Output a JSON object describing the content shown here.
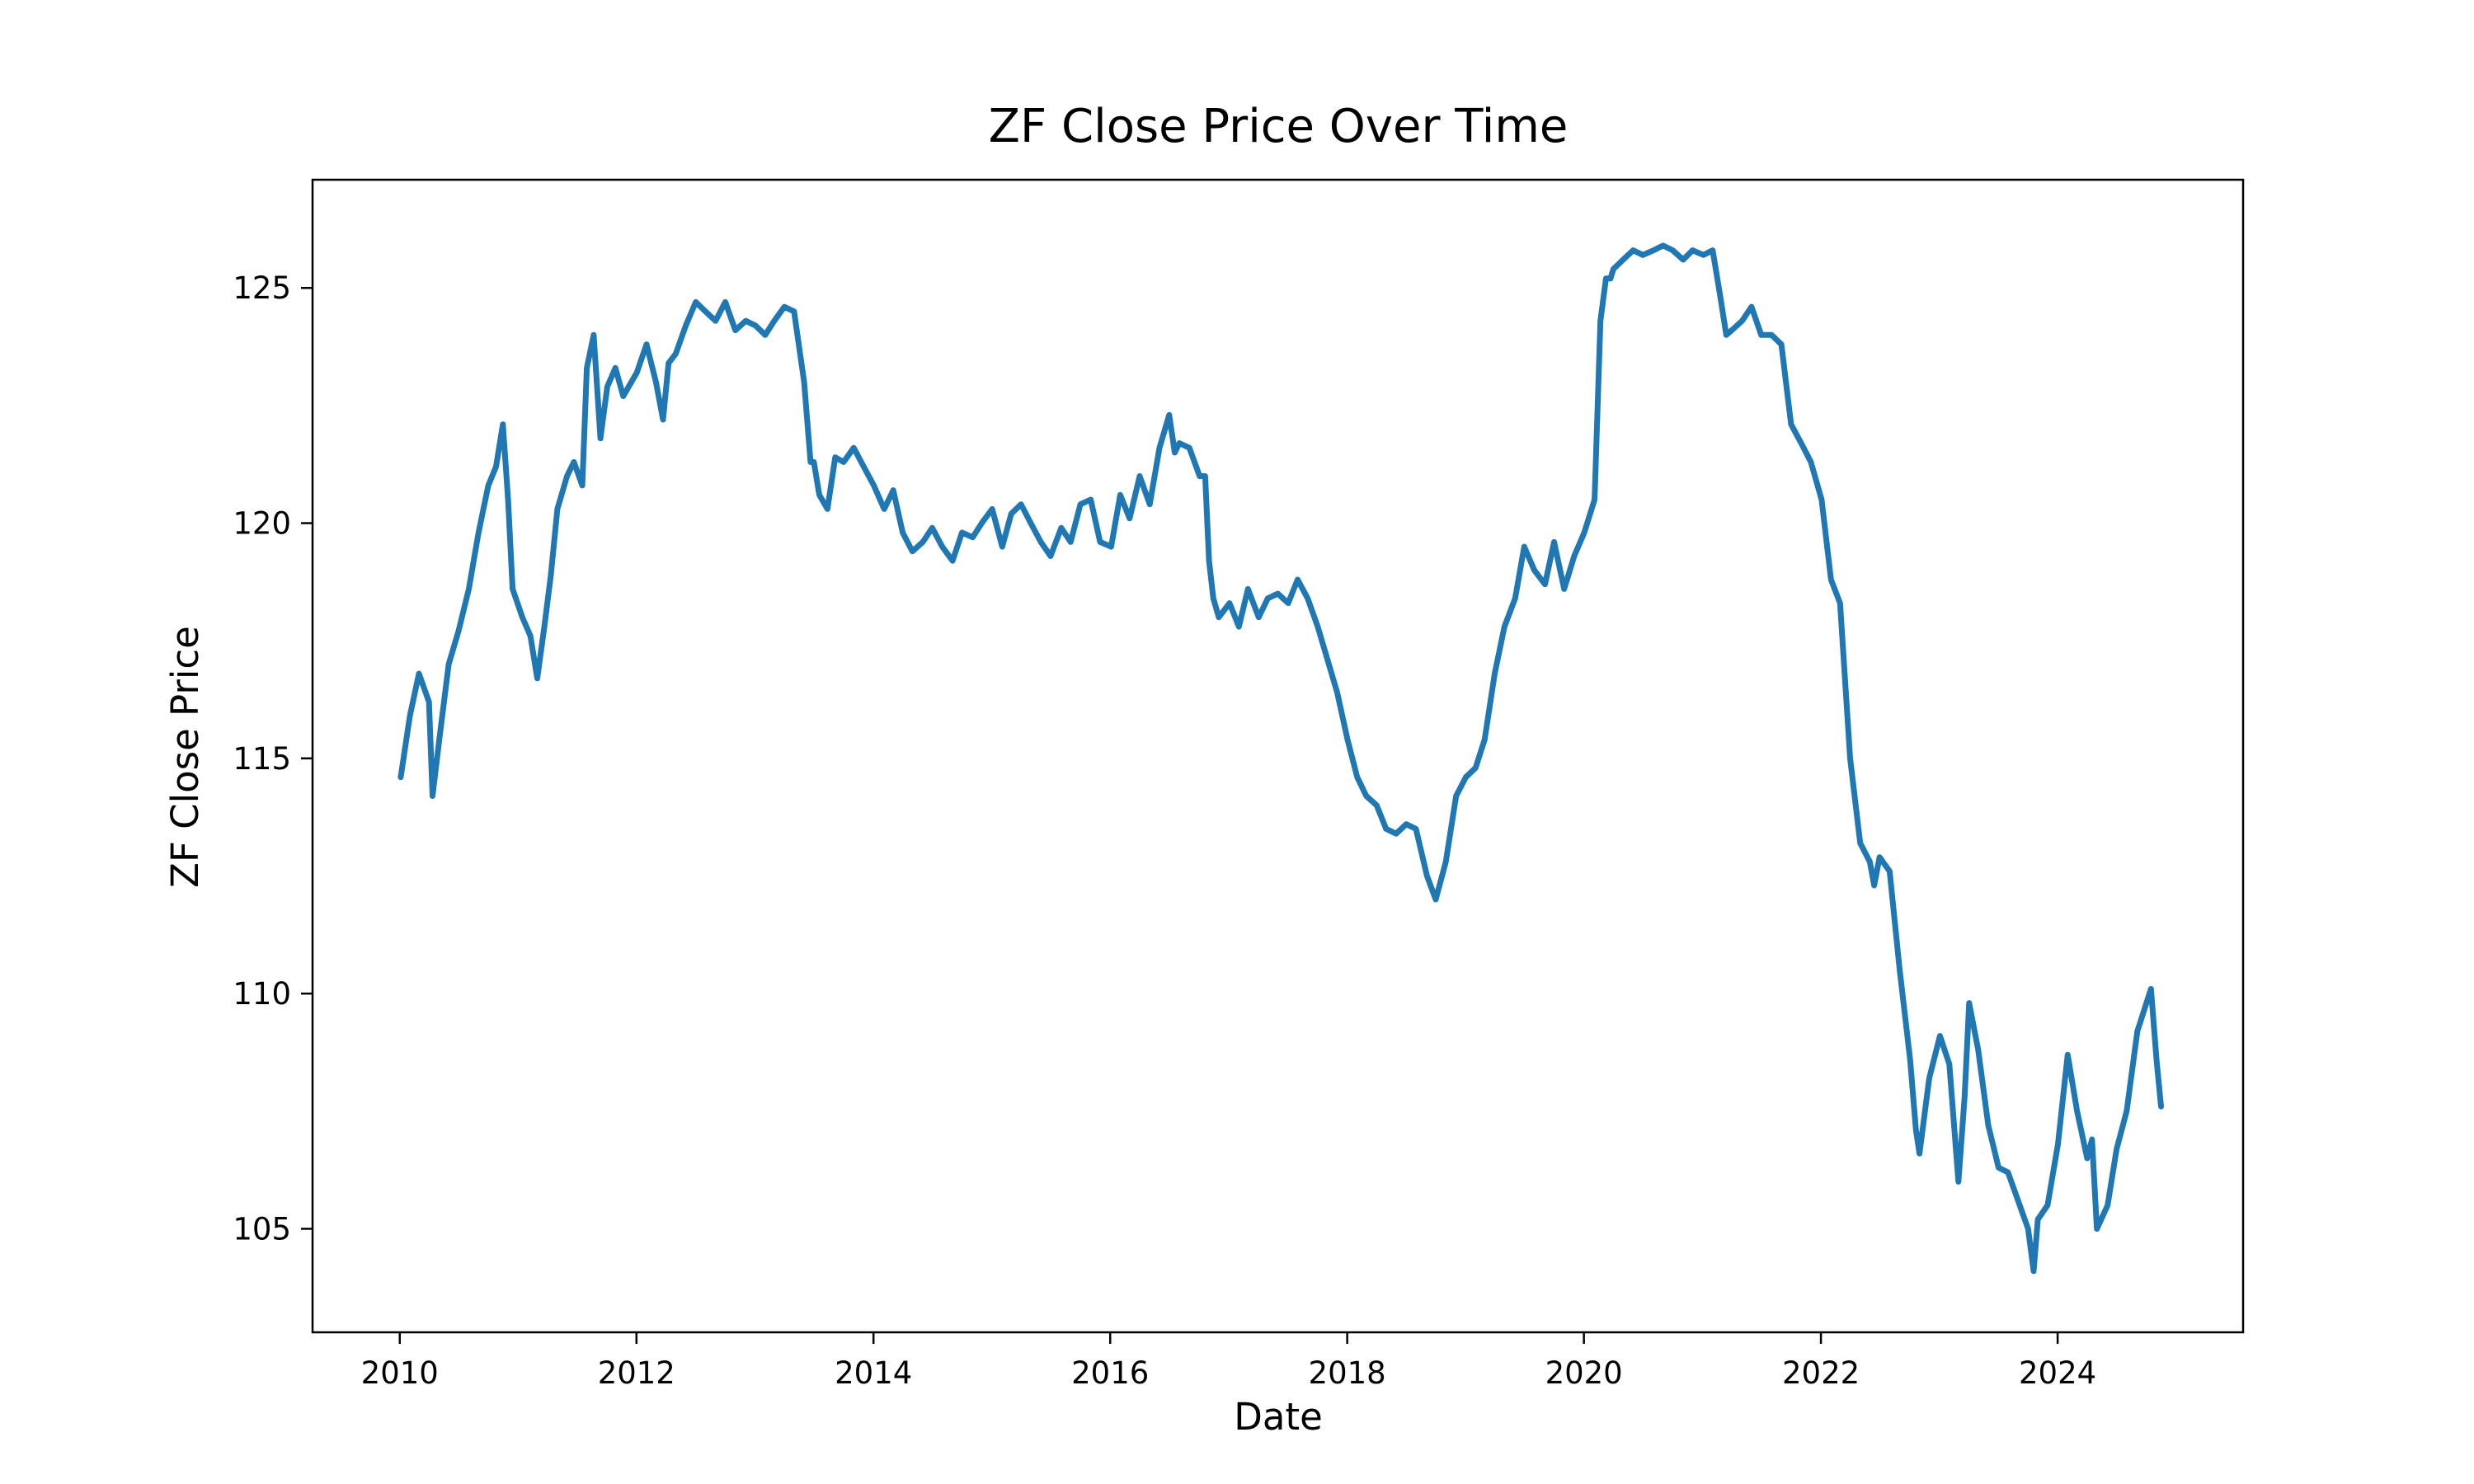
{
  "chart_data": {
    "type": "line",
    "title": "ZF Close Price Over Time",
    "xlabel": "Date",
    "ylabel": "ZF Close Price",
    "xlim": [
      "2009-04-07",
      "2025-07-26"
    ],
    "ylim": [
      102.8,
      127.3
    ],
    "x_ticks": [
      "2010",
      "2012",
      "2014",
      "2016",
      "2018",
      "2020",
      "2022",
      "2024"
    ],
    "y_ticks": [
      105,
      110,
      115,
      120,
      125
    ],
    "grid": false,
    "legend": "none",
    "line_color": "#1f77b4",
    "series": [
      {
        "x": [
          "2010-01-04",
          "2010-02-01",
          "2010-03-01",
          "2010-04-01",
          "2010-04-12",
          "2010-05-03",
          "2010-06-01",
          "2010-07-01",
          "2010-08-02",
          "2010-09-01",
          "2010-10-01",
          "2010-10-25",
          "2010-11-15",
          "2010-12-01",
          "2010-12-15",
          "2011-01-14",
          "2011-02-08",
          "2011-03-01",
          "2011-03-23",
          "2011-04-12",
          "2011-05-02",
          "2011-06-01",
          "2011-06-22",
          "2011-07-18",
          "2011-08-01",
          "2011-08-22",
          "2011-09-12",
          "2011-10-03",
          "2011-10-28",
          "2011-11-21",
          "2012-01-02",
          "2012-02-01",
          "2012-03-01",
          "2012-03-23",
          "2012-04-09",
          "2012-05-01",
          "2012-06-01",
          "2012-07-02",
          "2012-08-01",
          "2012-09-01",
          "2012-10-01",
          "2012-11-01",
          "2012-12-03",
          "2013-01-02",
          "2013-02-01",
          "2013-03-01",
          "2013-04-01",
          "2013-05-01",
          "2013-06-01",
          "2013-06-21",
          "2013-07-01",
          "2013-07-18",
          "2013-08-12",
          "2013-09-05",
          "2013-10-01",
          "2013-11-01",
          "2013-12-02",
          "2014-01-02",
          "2014-02-03",
          "2014-03-03",
          "2014-04-01",
          "2014-05-01",
          "2014-06-02",
          "2014-07-01",
          "2014-08-01",
          "2014-09-02",
          "2014-10-01",
          "2014-11-03",
          "2014-12-01",
          "2015-01-02",
          "2015-02-02",
          "2015-03-02",
          "2015-04-01",
          "2015-05-01",
          "2015-06-01",
          "2015-07-01",
          "2015-08-03",
          "2015-09-01",
          "2015-10-01",
          "2015-11-02",
          "2015-12-01",
          "2016-01-04",
          "2016-02-01",
          "2016-03-01",
          "2016-04-01",
          "2016-05-02",
          "2016-06-01",
          "2016-07-01",
          "2016-07-18",
          "2016-08-01",
          "2016-09-01",
          "2016-10-03",
          "2016-10-20",
          "2016-11-01",
          "2016-11-14",
          "2016-12-01",
          "2017-01-03",
          "2017-02-01",
          "2017-03-01",
          "2017-04-03",
          "2017-05-01",
          "2017-06-01",
          "2017-07-03",
          "2017-08-01",
          "2017-09-01",
          "2017-10-02",
          "2017-11-01",
          "2017-12-01",
          "2018-01-02",
          "2018-02-01",
          "2018-03-01",
          "2018-04-02",
          "2018-05-01",
          "2018-06-01",
          "2018-07-02",
          "2018-08-01",
          "2018-09-04",
          "2018-10-01",
          "2018-11-01",
          "2018-12-03",
          "2019-01-02",
          "2019-02-01",
          "2019-03-01",
          "2019-04-01",
          "2019-05-01",
          "2019-06-03",
          "2019-07-01",
          "2019-08-01",
          "2019-09-03",
          "2019-10-01",
          "2019-11-01",
          "2019-12-02",
          "2020-01-02",
          "2020-02-03",
          "2020-02-21",
          "2020-03-09",
          "2020-03-23",
          "2020-04-01",
          "2020-05-01",
          "2020-06-01",
          "2020-07-01",
          "2020-08-03",
          "2020-09-01",
          "2020-10-01",
          "2020-11-02",
          "2020-12-01",
          "2021-01-04",
          "2021-02-01",
          "2021-02-25",
          "2021-03-15",
          "2021-04-01",
          "2021-05-03",
          "2021-06-01",
          "2021-07-01",
          "2021-08-02",
          "2021-09-01",
          "2021-10-01",
          "2021-11-01",
          "2021-12-01",
          "2022-01-03",
          "2022-02-01",
          "2022-03-01",
          "2022-04-01",
          "2022-05-02",
          "2022-06-01",
          "2022-06-14",
          "2022-07-01",
          "2022-08-01",
          "2022-09-01",
          "2022-10-03",
          "2022-10-21",
          "2022-11-01",
          "2022-12-01",
          "2023-01-03",
          "2023-02-01",
          "2023-03-01",
          "2023-03-20",
          "2023-04-03",
          "2023-05-01",
          "2023-06-01",
          "2023-07-03",
          "2023-08-01",
          "2023-09-01",
          "2023-10-02",
          "2023-10-19",
          "2023-11-01",
          "2023-12-01",
          "2024-01-02",
          "2024-02-01",
          "2024-03-01",
          "2024-04-01",
          "2024-04-16",
          "2024-05-01",
          "2024-06-03",
          "2024-07-01",
          "2024-08-01",
          "2024-09-03",
          "2024-10-01",
          "2024-10-15",
          "2024-11-01",
          "2024-11-15"
        ],
        "y": [
          114.6,
          115.9,
          116.8,
          116.2,
          114.2,
          115.4,
          117.0,
          117.7,
          118.6,
          119.8,
          120.8,
          121.2,
          122.1,
          120.5,
          118.6,
          118.0,
          117.6,
          116.7,
          117.8,
          118.9,
          120.3,
          121.0,
          121.3,
          120.8,
          123.3,
          124.0,
          121.8,
          122.9,
          123.3,
          122.7,
          123.2,
          123.8,
          123.0,
          122.2,
          123.4,
          123.6,
          124.2,
          124.7,
          124.5,
          124.3,
          124.7,
          124.1,
          124.3,
          124.2,
          124.0,
          124.3,
          124.6,
          124.5,
          123.0,
          121.3,
          121.3,
          120.6,
          120.3,
          121.4,
          121.3,
          121.6,
          121.2,
          120.8,
          120.3,
          120.7,
          119.8,
          119.4,
          119.6,
          119.9,
          119.5,
          119.2,
          119.8,
          119.7,
          120.0,
          120.3,
          119.5,
          120.2,
          120.4,
          120.0,
          119.6,
          119.3,
          119.9,
          119.6,
          120.4,
          120.5,
          119.6,
          119.5,
          120.6,
          120.1,
          121.0,
          120.4,
          121.6,
          122.3,
          121.5,
          121.7,
          121.6,
          121.0,
          121.0,
          119.2,
          118.4,
          118.0,
          118.3,
          117.8,
          118.6,
          118.0,
          118.4,
          118.5,
          118.3,
          118.8,
          118.4,
          117.8,
          117.1,
          116.4,
          115.4,
          114.6,
          114.2,
          114.0,
          113.5,
          113.4,
          113.6,
          113.5,
          112.5,
          112.0,
          112.8,
          114.2,
          114.6,
          114.8,
          115.4,
          116.8,
          117.8,
          118.4,
          119.5,
          119.0,
          118.7,
          119.6,
          118.6,
          119.3,
          119.8,
          120.5,
          124.3,
          125.2,
          125.2,
          125.4,
          125.6,
          125.8,
          125.7,
          125.8,
          125.9,
          125.8,
          125.6,
          125.8,
          125.7,
          125.8,
          124.8,
          124.0,
          124.1,
          124.3,
          124.6,
          124.0,
          124.0,
          123.8,
          122.1,
          121.7,
          121.3,
          120.5,
          118.8,
          118.3,
          115.0,
          113.2,
          112.8,
          112.3,
          112.9,
          112.6,
          110.5,
          108.6,
          107.1,
          106.6,
          108.2,
          109.1,
          108.5,
          106.0,
          107.8,
          109.8,
          108.8,
          107.2,
          106.3,
          106.2,
          105.6,
          105.0,
          104.1,
          105.2,
          105.5,
          106.8,
          108.7,
          107.5,
          106.5,
          106.9,
          105.0,
          105.5,
          106.7,
          107.5,
          109.2,
          109.8,
          110.1,
          108.6,
          107.6
        ]
      }
    ]
  }
}
